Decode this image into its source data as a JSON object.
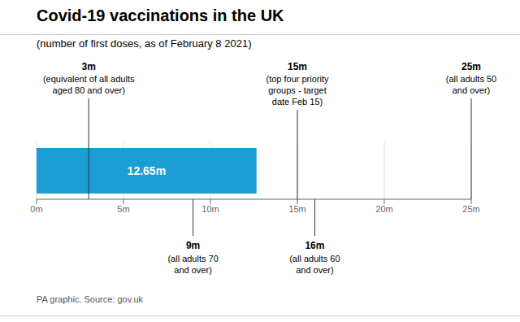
{
  "chart_data": {
    "type": "bar",
    "orientation": "horizontal",
    "title": "Covid-19 vaccinations in the UK",
    "subtitle": "(number of first doses, as of February 8 2021)",
    "categories": [
      null
    ],
    "values": [
      12.65
    ],
    "value_labels": [
      "12.65m"
    ],
    "data_labels": true,
    "color": "#1a9ed4",
    "xlim": [
      0,
      25
    ],
    "xticks": [
      {
        "value": 0,
        "label": "0m"
      },
      {
        "value": 5,
        "label": "5m"
      },
      {
        "value": 10,
        "label": "10m"
      },
      {
        "value": 15,
        "label": "15m"
      },
      {
        "value": 20,
        "label": "20m"
      },
      {
        "value": 25,
        "label": "25m"
      }
    ],
    "grid": true,
    "tick_labels": "x",
    "top_annotations": [
      {
        "x": 3,
        "label": "3m",
        "text": "(equivalent of all adults\naged 80 and over)"
      },
      {
        "x": 15,
        "label": "15m",
        "text": "(top four priority\ngroups - target\ndate Feb 15)"
      },
      {
        "x": 25,
        "label": "25m",
        "text": "(all adults 50\nand over)"
      }
    ],
    "bottom_annotations": [
      {
        "x": 9,
        "label": "9m",
        "text": "(all adults 70\nand over)"
      },
      {
        "x": 16,
        "label": "16m",
        "text": "(all adults 60\nand over)"
      }
    ],
    "footer": "PA graphic. Source: gov.uk"
  }
}
